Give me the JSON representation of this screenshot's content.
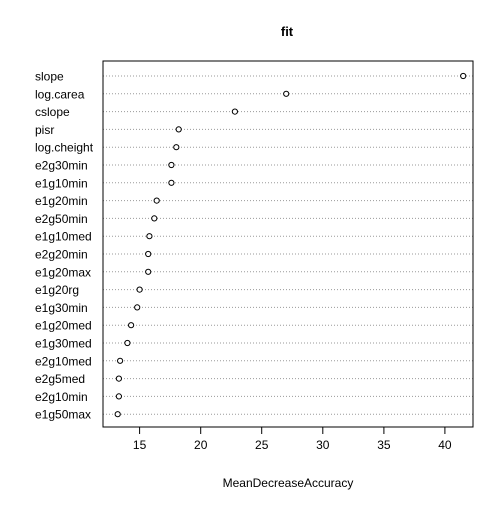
{
  "chart_data": {
    "type": "scatter",
    "title": "fit",
    "xlabel": "MeanDecreaseAccuracy",
    "ylabel": "",
    "xlim": [
      12.0,
      42.3
    ],
    "xticks": [
      15,
      20,
      25,
      30,
      35,
      40
    ],
    "grid": "dotted horizontal lines per category",
    "categories": [
      "slope",
      "log.carea",
      "cslope",
      "pisr",
      "log.cheight",
      "e2g30min",
      "e1g10min",
      "e1g20min",
      "e2g50min",
      "e1g10med",
      "e2g20min",
      "e1g20max",
      "e1g20rg",
      "e1g30min",
      "e1g20med",
      "e1g30med",
      "e2g10med",
      "e2g5med",
      "e2g10min",
      "e1g50max"
    ],
    "values": [
      41.5,
      27.0,
      22.8,
      18.2,
      18.0,
      17.6,
      17.6,
      16.4,
      16.2,
      15.8,
      15.7,
      15.7,
      15.0,
      14.8,
      14.3,
      14.0,
      13.4,
      13.3,
      13.3,
      13.2
    ]
  }
}
